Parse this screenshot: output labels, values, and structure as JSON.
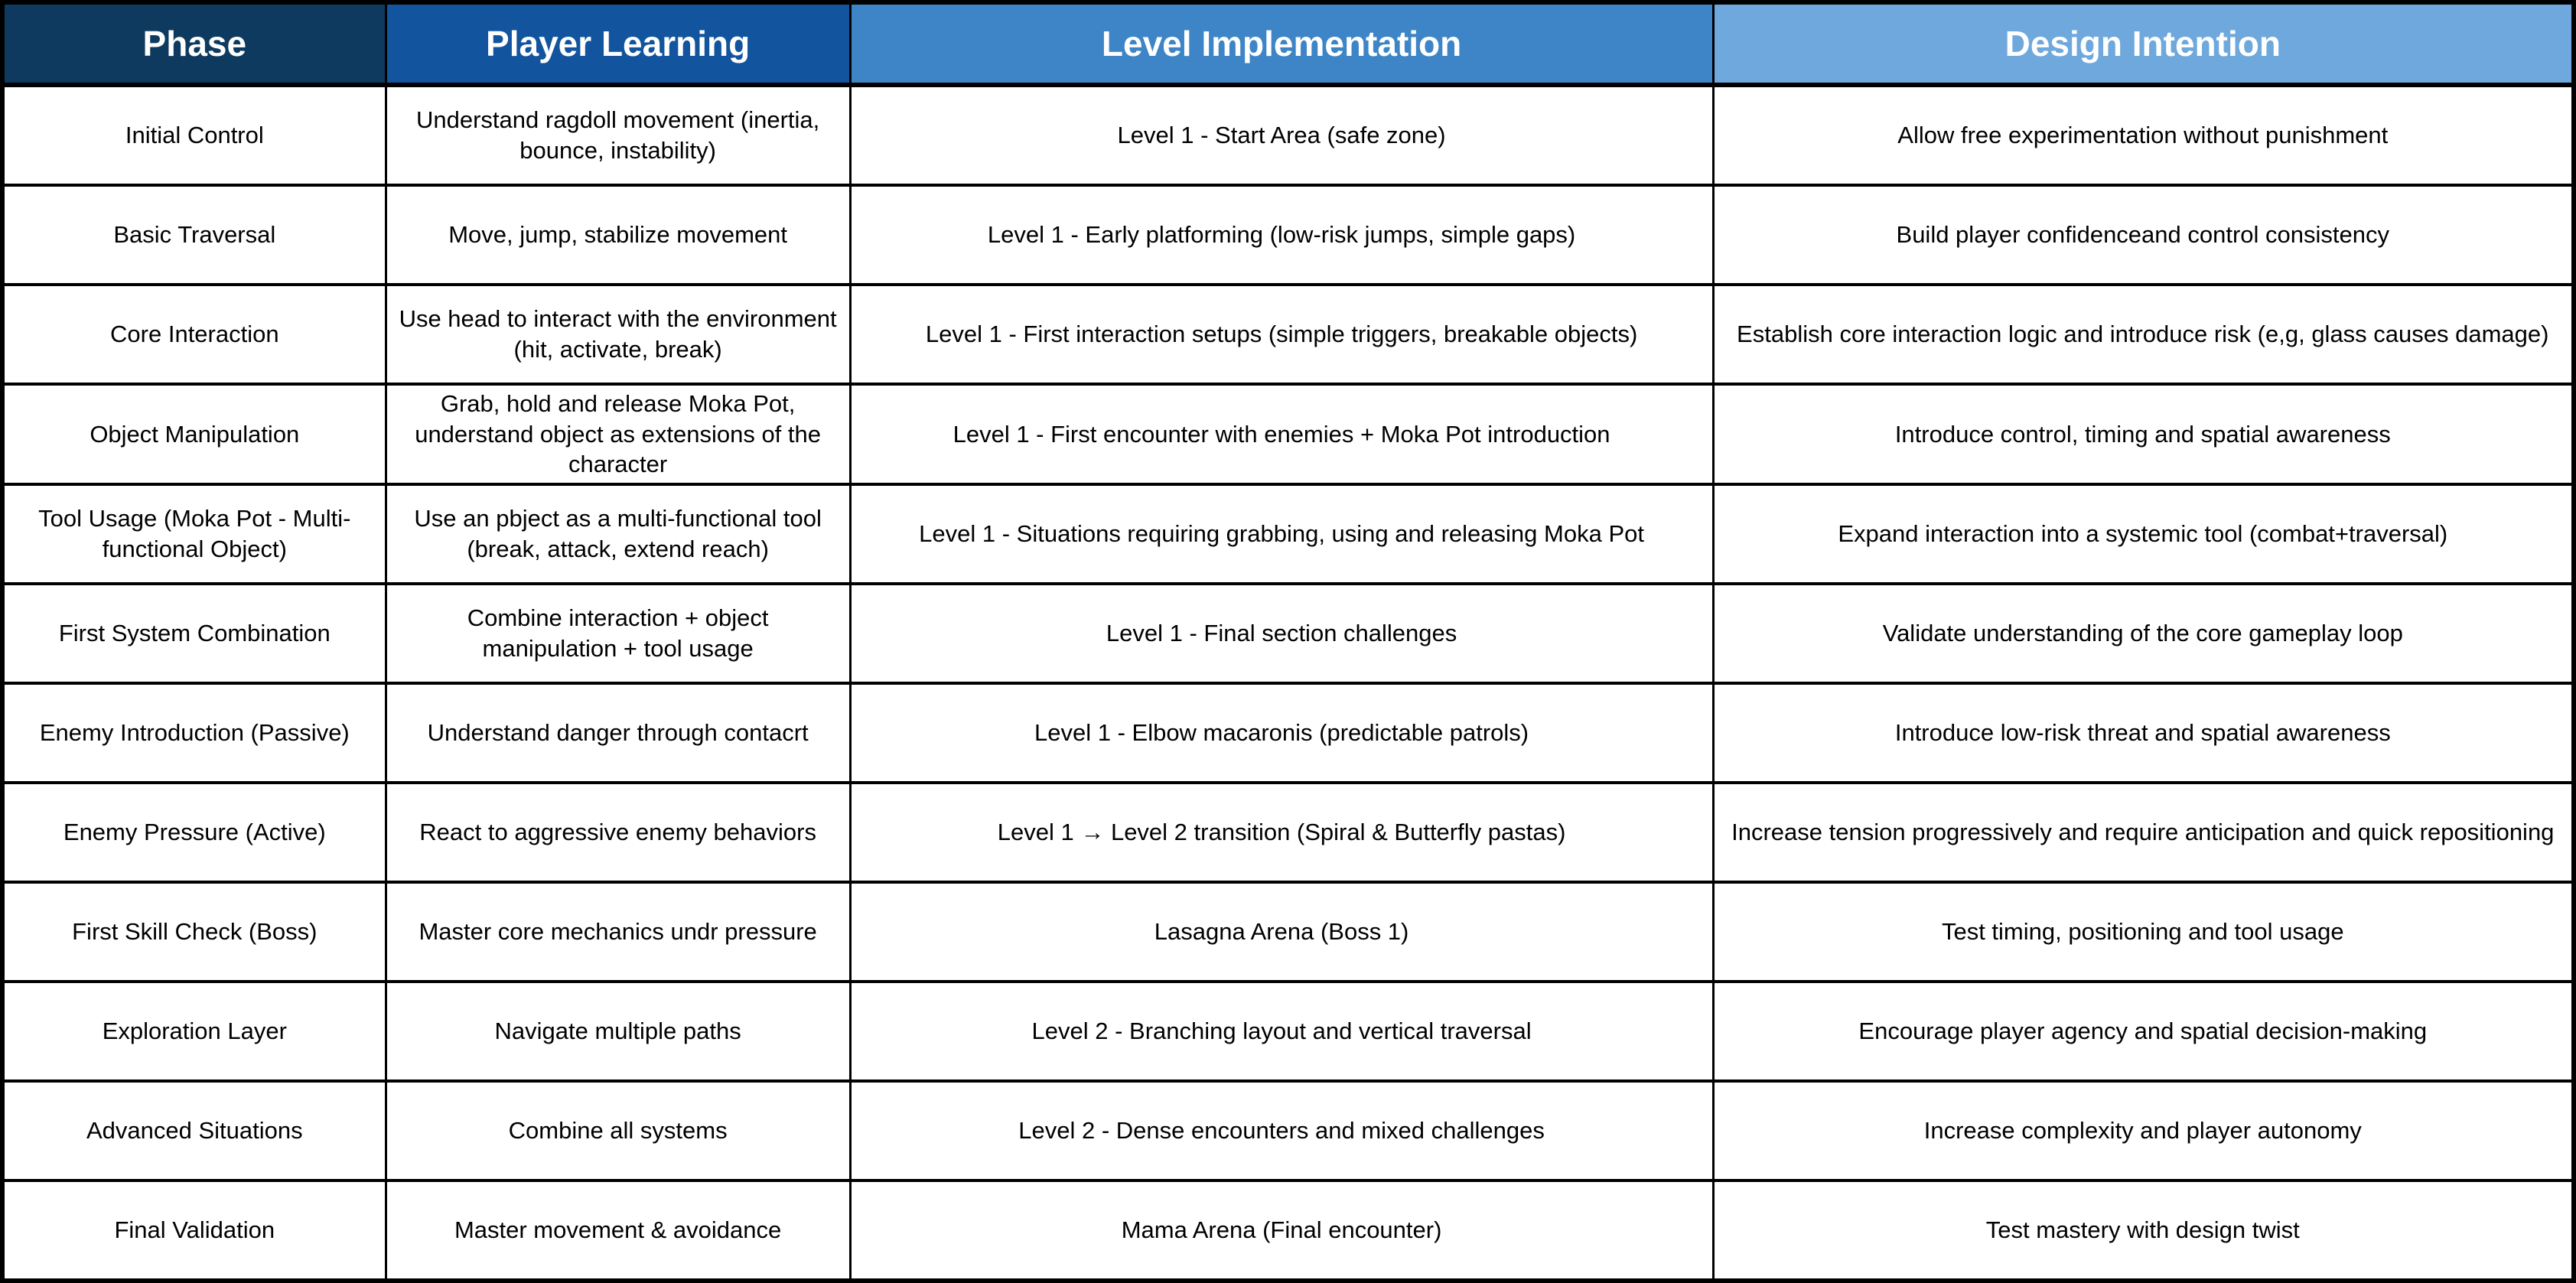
{
  "table": {
    "columns": [
      {
        "label": "Phase",
        "header_color": "#0e3a5f",
        "text_color": "#ffffff"
      },
      {
        "label": "Player Learning",
        "header_color": "#12559e",
        "text_color": "#ffffff"
      },
      {
        "label": "Level Implementation",
        "header_color": "#3d85c6",
        "text_color": "#ffffff"
      },
      {
        "label": "Design Intention",
        "header_color": "#6fa8dc",
        "text_color": "#ffffff"
      }
    ],
    "rows": [
      {
        "phase": "Initial Control",
        "player_learning": "Understand ragdoll movement (inertia, bounce, instability)",
        "level_implementation": "Level 1 - Start Area (safe zone)",
        "design_intention": "Allow free experimentation without punishment"
      },
      {
        "phase": "Basic Traversal",
        "player_learning": "Move, jump, stabilize movement",
        "level_implementation": "Level 1 - Early platforming (low-risk jumps, simple gaps)",
        "design_intention": "Build player confidenceand control consistency"
      },
      {
        "phase": "Core Interaction",
        "player_learning": "Use head to interact with the environment (hit, activate, break)",
        "level_implementation": "Level 1 - First interaction setups (simple triggers, breakable objects)",
        "design_intention": "Establish core interaction logic and introduce risk (e,g, glass causes damage)"
      },
      {
        "phase": "Object Manipulation",
        "player_learning": "Grab, hold and release Moka Pot, understand object as extensions of the character",
        "level_implementation": "Level 1 - First encounter with enemies + Moka Pot introduction",
        "design_intention": "Introduce control, timing and spatial awareness"
      },
      {
        "phase": "Tool Usage (Moka Pot - Multi-functional Object)",
        "player_learning": "Use an pbject as a multi-functional tool (break, attack, extend reach)",
        "level_implementation": "Level 1 - Situations requiring grabbing, using and releasing Moka Pot",
        "design_intention": "Expand interaction into a systemic tool (combat+traversal)"
      },
      {
        "phase": "First System Combination",
        "player_learning": "Combine interaction + object manipulation + tool usage",
        "level_implementation": "Level 1 - Final section challenges",
        "design_intention": "Validate understanding of the core gameplay loop"
      },
      {
        "phase": "Enemy Introduction (Passive)",
        "player_learning": "Understand danger through contacrt",
        "level_implementation": "Level 1 - Elbow macaronis (predictable patrols)",
        "design_intention": "Introduce low-risk threat and spatial awareness"
      },
      {
        "phase": "Enemy Pressure (Active)",
        "player_learning": "React to aggressive enemy behaviors",
        "level_implementation": "Level 1 → Level 2 transition (Spiral & Butterfly pastas)",
        "design_intention": "Increase tension progressively and require anticipation and quick repositioning"
      },
      {
        "phase": "First Skill Check (Boss)",
        "player_learning": "Master core mechanics undr pressure",
        "level_implementation": "Lasagna Arena (Boss 1)",
        "design_intention": "Test timing, positioning and tool usage"
      },
      {
        "phase": "Exploration Layer",
        "player_learning": "Navigate multiple paths",
        "level_implementation": "Level 2 - Branching layout and vertical traversal",
        "design_intention": "Encourage player agency and spatial decision-making"
      },
      {
        "phase": "Advanced Situations",
        "player_learning": "Combine all systems",
        "level_implementation": "Level 2 - Dense encounters and mixed challenges",
        "design_intention": "Increase complexity and player autonomy"
      },
      {
        "phase": "Final Validation",
        "player_learning": "Master movement & avoidance",
        "level_implementation": "Mama Arena (Final encounter)",
        "design_intention": "Test mastery with design twist"
      }
    ]
  }
}
